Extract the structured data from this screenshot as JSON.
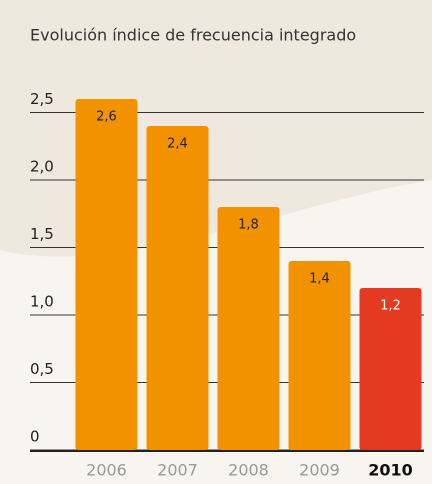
{
  "chart_data": {
    "type": "bar",
    "title": "Evolución índice de frecuencia integrado",
    "categories": [
      "2006",
      "2007",
      "2008",
      "2009",
      "2010"
    ],
    "values": [
      2.6,
      2.4,
      1.8,
      1.4,
      1.2
    ],
    "value_labels": [
      "2,6",
      "2,4",
      "1,8",
      "1,4",
      "1,2"
    ],
    "colors": [
      "#f39200",
      "#f39200",
      "#f39200",
      "#f39200",
      "#e53a22"
    ],
    "ylim": [
      0,
      2.5
    ],
    "yticks": [
      0,
      {
        "value": 0.5,
        "label": "0,5"
      },
      {
        "value": 1,
        "label": "1,0"
      },
      {
        "value": 1.5,
        "label": "1,5"
      },
      {
        "value": 2,
        "label": "2,0"
      },
      {
        "value": 2.5,
        "label": "2,5"
      }
    ],
    "grid": true
  }
}
